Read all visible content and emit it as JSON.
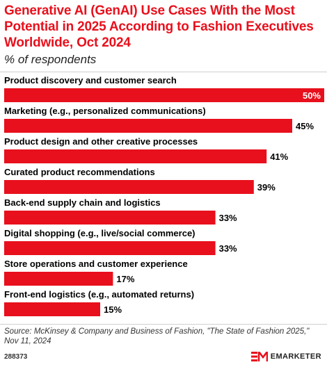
{
  "header": {
    "title": "Generative AI (GenAI) Use Cases With the Most Potential in 2025 According to Fashion Executives Worldwide, Oct 2024",
    "subtitle": "% of respondents"
  },
  "chart_data": {
    "type": "bar",
    "orientation": "horizontal",
    "categories": [
      "Product discovery and customer search",
      "Marketing (e.g., personalized communications)",
      "Product design and other creative processes",
      "Curated product recommendations",
      "Back-end supply chain and logistics",
      "Digital shopping (e.g., live/social commerce)",
      "Store operations and customer experience",
      "Front-end logistics (e.g., automated returns)"
    ],
    "values": [
      50,
      45,
      41,
      39,
      33,
      33,
      17,
      15
    ],
    "value_labels": [
      "50%",
      "45%",
      "41%",
      "39%",
      "33%",
      "33%",
      "17%",
      "15%"
    ],
    "xlim": [
      0,
      50
    ],
    "grid": false,
    "bar_color": "#e8101c"
  },
  "footer": {
    "source": "Source: McKinsey & Company and Business of Fashion, \"The State of Fashion 2025,\" Nov 11, 2024",
    "chart_id": "288373",
    "brand": "EMARKETER"
  },
  "colors": {
    "accent": "#e8101c",
    "inside_label": "#ffffff",
    "outside_label": "#000000"
  }
}
